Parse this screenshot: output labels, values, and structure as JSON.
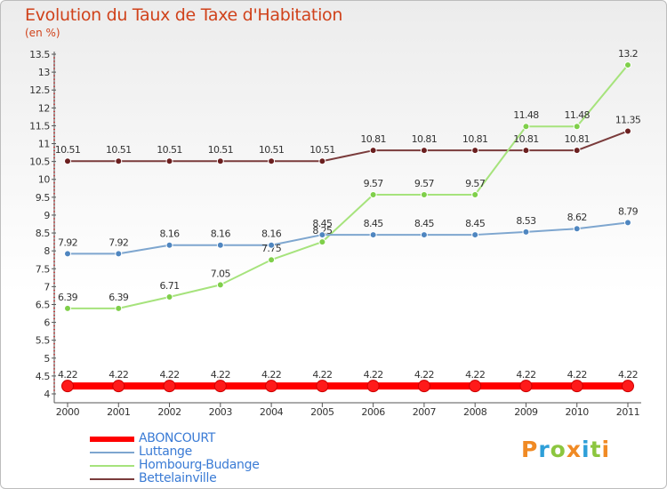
{
  "header": {
    "title": "Evolution du Taux de Taxe d'Habitation",
    "subtitle": "(en %)"
  },
  "brand": {
    "name": "Proxiti",
    "letters": [
      "P",
      "r",
      "o",
      "x",
      "i",
      "t",
      "i"
    ],
    "colors": [
      "#f08a24",
      "#2e9fd8",
      "#8cc63f",
      "#f08a24",
      "#2e9fd8",
      "#8cc63f",
      "#f08a24"
    ]
  },
  "chart_data": {
    "type": "line",
    "title": "Evolution du Taux de Taxe d'Habitation",
    "subtitle": "(en %)",
    "x": [
      "2000",
      "2001",
      "2002",
      "2003",
      "2004",
      "2005",
      "2006",
      "2007",
      "2008",
      "2009",
      "2010",
      "2011"
    ],
    "ylim": [
      4,
      13.5
    ],
    "yticks": [
      "4",
      "4.5",
      "5",
      "5.5",
      "6",
      "6.5",
      "7",
      "7.5",
      "8",
      "8.5",
      "9",
      "9.5",
      "10",
      "10.5",
      "11",
      "11.5",
      "12",
      "12.5",
      "13",
      "13.5"
    ],
    "grid": false,
    "legend_position": "bottom-left",
    "series": [
      {
        "name": "ABONCOURT",
        "color": "#ff0000",
        "values": [
          4.22,
          4.22,
          4.22,
          4.22,
          4.22,
          4.22,
          4.22,
          4.22,
          4.22,
          4.22,
          4.22,
          4.22
        ],
        "labels": [
          "4.22",
          "4.22",
          "4.22",
          "4.22",
          "4.22",
          "4.22",
          "4.22",
          "4.22",
          "4.22",
          "4.22",
          "4.22",
          "4.22"
        ]
      },
      {
        "name": "Luttange",
        "color": "#7ea6cf",
        "values": [
          7.92,
          7.92,
          8.16,
          8.16,
          8.16,
          8.45,
          8.45,
          8.45,
          8.45,
          8.53,
          8.62,
          8.79
        ],
        "labels": [
          "7.92",
          "7.92",
          "8.16",
          "8.16",
          "8.16",
          "8.45",
          "8.45",
          "8.45",
          "8.45",
          "8.53",
          "8.62",
          "8.79"
        ]
      },
      {
        "name": "Hombourg-Budange",
        "color": "#a6e37c",
        "values": [
          6.39,
          6.39,
          6.71,
          7.05,
          7.75,
          8.25,
          9.57,
          9.57,
          9.57,
          11.48,
          11.48,
          13.2
        ],
        "labels": [
          "6.39",
          "6.39",
          "6.71",
          "7.05",
          "7.75",
          "8.25",
          "9.57",
          "9.57",
          "9.57",
          "11.48",
          "11.48",
          "13.2"
        ]
      },
      {
        "name": "Bettelainville",
        "color": "#7a3b3b",
        "values": [
          10.51,
          10.51,
          10.51,
          10.51,
          10.51,
          10.51,
          10.81,
          10.81,
          10.81,
          10.81,
          10.81,
          11.35
        ],
        "labels": [
          "10.51",
          "10.51",
          "10.51",
          "10.51",
          "10.51",
          "10.51",
          "10.81",
          "10.81",
          "10.81",
          "10.81",
          "10.81",
          "11.35"
        ]
      }
    ]
  }
}
